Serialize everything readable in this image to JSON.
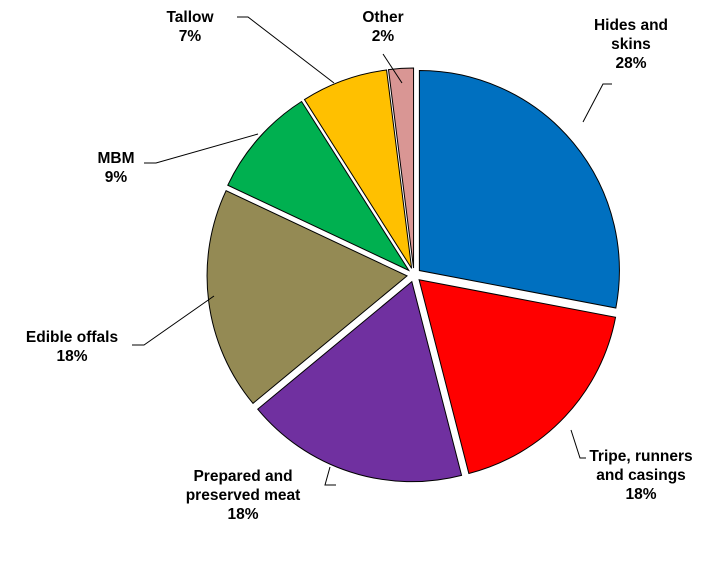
{
  "chart_data": {
    "type": "pie",
    "title": "",
    "series": [
      {
        "name": "",
        "slices": [
          {
            "label": "Hides and skins",
            "label_lines": [
              "Hides and",
              "skins"
            ],
            "value": 28,
            "value_label": "28%",
            "color": "#0070c0"
          },
          {
            "label": "Tripe, runners and casings",
            "label_lines": [
              "Tripe, runners",
              "and casings"
            ],
            "value": 18,
            "value_label": "18%",
            "color": "#ff0000"
          },
          {
            "label": "Prepared and preserved meat",
            "label_lines": [
              "Prepared and",
              "preserved meat"
            ],
            "value": 18,
            "value_label": "18%",
            "color": "#7030a0"
          },
          {
            "label": "Edible offals",
            "label_lines": [
              "Edible offals"
            ],
            "value": 18,
            "value_label": "18%",
            "color": "#948a54"
          },
          {
            "label": "MBM",
            "label_lines": [
              "MBM"
            ],
            "value": 9,
            "value_label": "9%",
            "color": "#00b050"
          },
          {
            "label": "Tallow",
            "label_lines": [
              "Tallow"
            ],
            "value": 7,
            "value_label": "7%",
            "color": "#ffc000"
          },
          {
            "label": "Other",
            "label_lines": [
              "Other"
            ],
            "value": 2,
            "value_label": "2%",
            "color": "#d99694"
          }
        ]
      }
    ],
    "legend": "none",
    "data_labels": "outside with leader lines"
  }
}
